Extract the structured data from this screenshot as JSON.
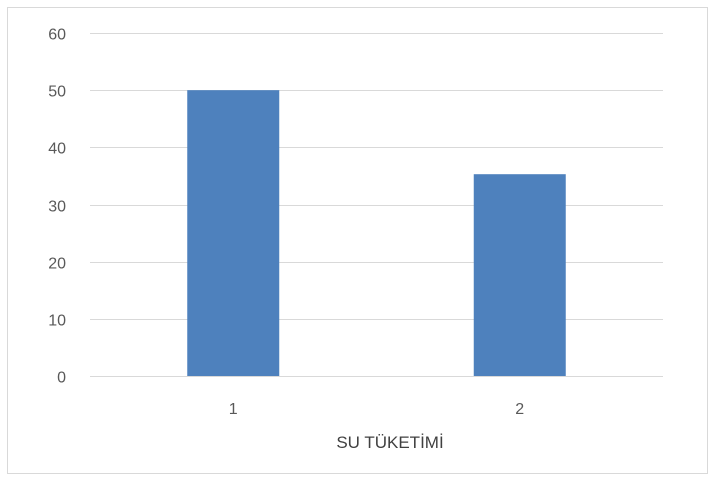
{
  "chart_data": {
    "type": "bar",
    "categories": [
      "1",
      "2"
    ],
    "series": [
      {
        "values": [
          50,
          35.3
        ],
        "color": "#4e81bd"
      }
    ],
    "xlabel": "SU TÜKETİMİ",
    "ylabel": "",
    "ylim": [
      0,
      60
    ],
    "yticks": [
      0,
      10,
      20,
      30,
      40,
      50,
      60
    ],
    "grid": true,
    "gridline_color": "#d9d9d9",
    "legend": "none"
  }
}
